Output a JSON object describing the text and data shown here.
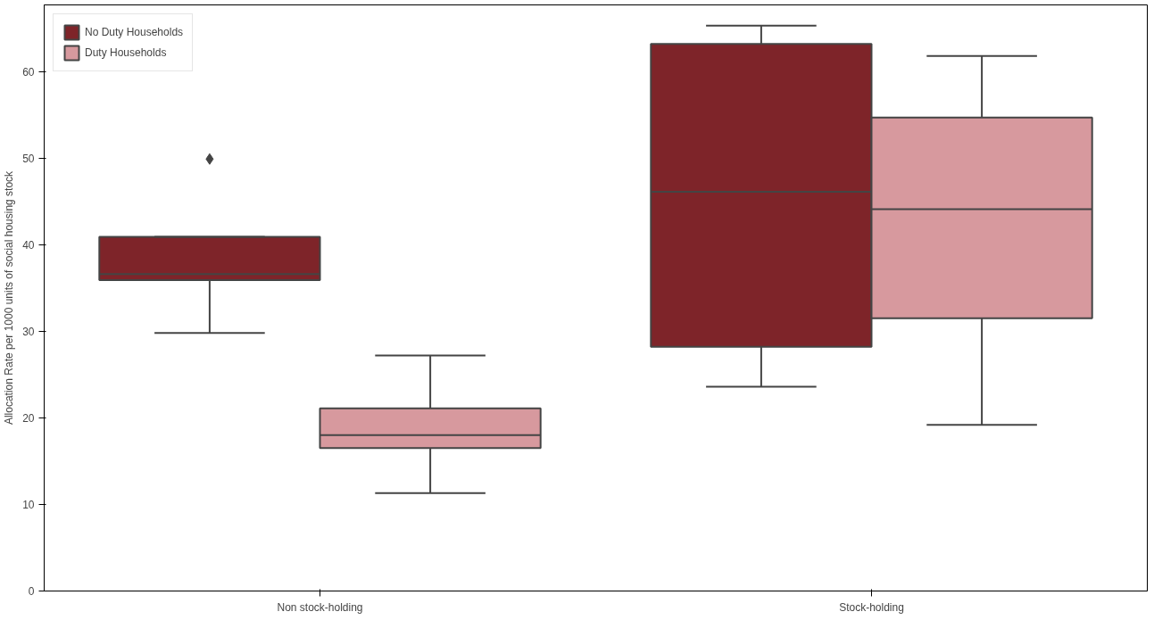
{
  "chart_data": {
    "type": "box",
    "ylabel": "Allocation Rate per 1000 units of social housing stock",
    "categories": [
      "Non stock-holding",
      "Stock-holding"
    ],
    "series": [
      {
        "name": "No Duty Households",
        "color": "#7e2429",
        "boxes": [
          {
            "low": 29.8,
            "q1": 35.9,
            "median": 36.6,
            "q3": 40.9,
            "high": 40.9,
            "outliers": [
              49.9
            ]
          },
          {
            "low": 23.6,
            "q1": 28.2,
            "median": 46.1,
            "q3": 63.2,
            "high": 65.3
          }
        ]
      },
      {
        "name": "Duty Households",
        "color": "#d7999e",
        "boxes": [
          {
            "low": 11.3,
            "q1": 16.5,
            "median": 18.0,
            "q3": 21.1,
            "high": 27.2
          },
          {
            "low": 19.2,
            "q1": 31.5,
            "median": 44.1,
            "q3": 54.7,
            "high": 61.8
          }
        ]
      }
    ],
    "ylim": [
      0,
      67.7
    ],
    "yticks": [
      0,
      10,
      20,
      30,
      40,
      50,
      60
    ],
    "grid": false,
    "legend": "top left",
    "marker": "diamond"
  }
}
